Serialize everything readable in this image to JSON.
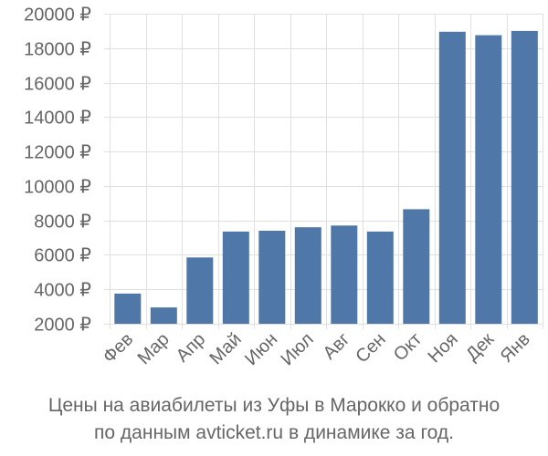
{
  "chart_data": {
    "type": "bar",
    "title": "",
    "xlabel": "",
    "ylabel": "",
    "ylim": [
      2000,
      20000
    ],
    "yticks": [
      2000,
      4000,
      6000,
      8000,
      10000,
      12000,
      14000,
      16000,
      18000,
      20000
    ],
    "ytick_labels": [
      "2000 ₽",
      "4000 ₽",
      "6000 ₽",
      "8000 ₽",
      "10000 ₽",
      "12000 ₽",
      "14000 ₽",
      "16000 ₽",
      "18000 ₽",
      "20000 ₽"
    ],
    "categories": [
      "Фев",
      "Мар",
      "Апр",
      "Май",
      "Июн",
      "Июл",
      "Авг",
      "Сен",
      "Окт",
      "Ноя",
      "Дек",
      "Янв"
    ],
    "values": [
      3750,
      2950,
      5850,
      7350,
      7400,
      7600,
      7700,
      7350,
      8650,
      18950,
      18750,
      19000
    ],
    "bar_color": "#4f78a8",
    "grid": true,
    "grid_color": "#e0e0e0"
  },
  "caption": {
    "line1": "Цены на авиабилеты из Уфы в Марокко и обратно",
    "line2": "по данным avticket.ru в динамике за год."
  }
}
